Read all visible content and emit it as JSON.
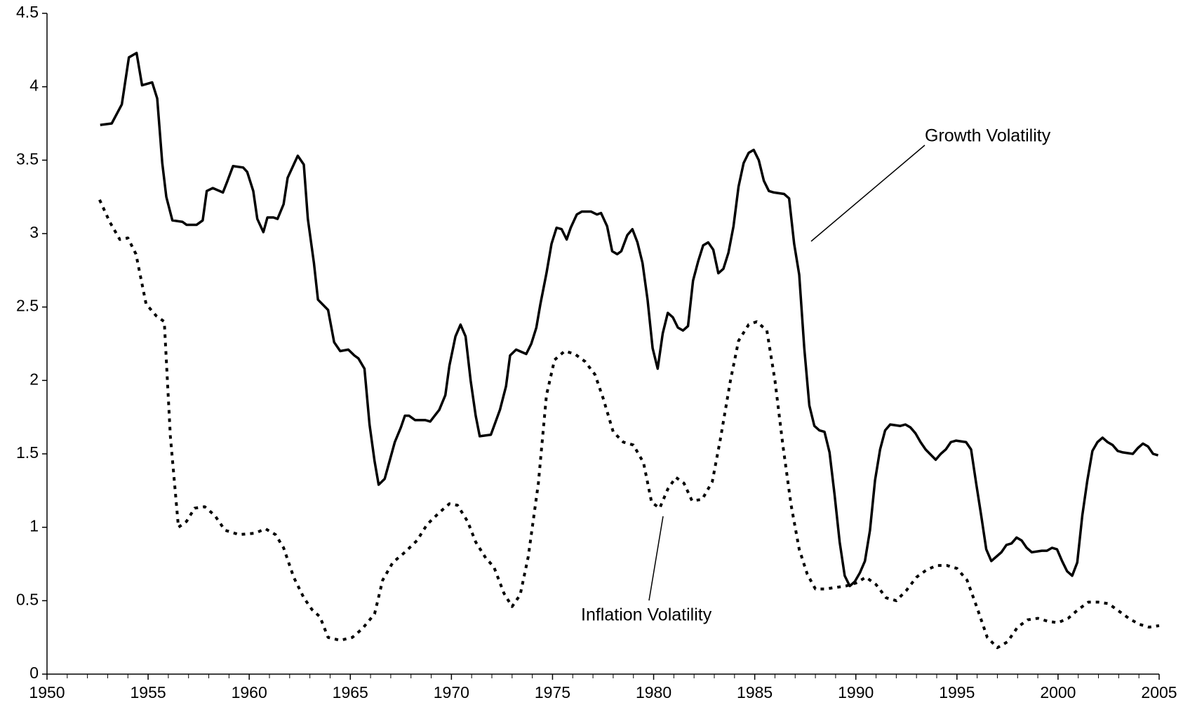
{
  "chart_data": {
    "type": "line",
    "xlim": [
      1950,
      2005
    ],
    "xticks": [
      1950,
      1955,
      1960,
      1965,
      1970,
      1975,
      1980,
      1985,
      1990,
      1995,
      2000,
      2005
    ],
    "ylim": [
      0,
      4.5
    ],
    "yticks": [
      0,
      0.5,
      1,
      1.5,
      2,
      2.5,
      3,
      3.5,
      4,
      4.5
    ],
    "series": [
      {
        "name": "Growth Volatility",
        "color": "#000000",
        "dash": "solid",
        "x": [
          1952.63,
          1953.2,
          1953.7,
          1954.05,
          1954.43,
          1954.7,
          1955.2,
          1955.45,
          1955.7,
          1955.9,
          1956.2,
          1956.7,
          1956.9,
          1957.4,
          1957.7,
          1957.9,
          1958.2,
          1958.7,
          1958.9,
          1959.2,
          1959.7,
          1959.9,
          1960.2,
          1960.4,
          1960.7,
          1960.9,
          1961.2,
          1961.4,
          1961.7,
          1961.9,
          1962.2,
          1962.4,
          1962.7,
          1962.9,
          1963.2,
          1963.4,
          1963.9,
          1964.2,
          1964.5,
          1964.9,
          1965.2,
          1965.4,
          1965.7,
          1965.95,
          1966.2,
          1966.4,
          1966.7,
          1966.9,
          1967.2,
          1967.5,
          1967.7,
          1967.9,
          1968.2,
          1968.7,
          1968.95,
          1969.4,
          1969.7,
          1969.9,
          1970.2,
          1970.45,
          1970.7,
          1970.95,
          1971.2,
          1971.4,
          1971.95,
          1972.4,
          1972.7,
          1972.9,
          1973.2,
          1973.7,
          1973.95,
          1974.2,
          1974.4,
          1974.7,
          1974.95,
          1975.2,
          1975.45,
          1975.7,
          1975.9,
          1976.2,
          1976.45,
          1976.9,
          1977.2,
          1977.4,
          1977.7,
          1977.95,
          1978.2,
          1978.4,
          1978.7,
          1978.95,
          1979.2,
          1979.45,
          1979.7,
          1979.95,
          1980.2,
          1980.45,
          1980.7,
          1980.95,
          1981.2,
          1981.45,
          1981.7,
          1981.95,
          1982.2,
          1982.45,
          1982.7,
          1982.95,
          1983.2,
          1983.45,
          1983.7,
          1983.95,
          1984.2,
          1984.45,
          1984.7,
          1984.95,
          1985.2,
          1985.45,
          1985.7,
          1985.95,
          1986.45,
          1986.7,
          1986.95,
          1987.2,
          1987.45,
          1987.7,
          1987.95,
          1988.2,
          1988.45,
          1988.7,
          1988.95,
          1989.2,
          1989.45,
          1989.7,
          1989.95,
          1990.2,
          1990.45,
          1990.7,
          1990.95,
          1991.2,
          1991.45,
          1991.7,
          1992.2,
          1992.45,
          1992.7,
          1992.95,
          1993.2,
          1993.45,
          1993.95,
          1994.2,
          1994.45,
          1994.7,
          1994.95,
          1995.45,
          1995.7,
          1995.95,
          1996.2,
          1996.45,
          1996.7,
          1997.2,
          1997.45,
          1997.7,
          1997.95,
          1998.2,
          1998.45,
          1998.7,
          1999.2,
          1999.45,
          1999.7,
          1999.95,
          2000.2,
          2000.45,
          2000.7,
          2000.95,
          2001.2,
          2001.45,
          2001.7,
          2001.95,
          2002.2,
          2002.45,
          2002.7,
          2002.95,
          2003.2,
          2003.7,
          2003.95,
          2004.2,
          2004.45,
          2004.7,
          2004.95
        ],
        "values": [
          3.74,
          3.75,
          3.88,
          4.2,
          4.23,
          4.01,
          4.03,
          3.92,
          3.48,
          3.25,
          3.09,
          3.08,
          3.06,
          3.06,
          3.09,
          3.29,
          3.31,
          3.28,
          3.35,
          3.46,
          3.45,
          3.42,
          3.29,
          3.1,
          3.01,
          3.11,
          3.11,
          3.1,
          3.2,
          3.38,
          3.47,
          3.53,
          3.47,
          3.1,
          2.8,
          2.55,
          2.48,
          2.26,
          2.2,
          2.21,
          2.17,
          2.15,
          2.08,
          1.7,
          1.45,
          1.29,
          1.33,
          1.43,
          1.58,
          1.68,
          1.76,
          1.76,
          1.73,
          1.73,
          1.72,
          1.8,
          1.9,
          2.1,
          2.3,
          2.38,
          2.3,
          2.0,
          1.76,
          1.62,
          1.63,
          1.8,
          1.96,
          2.17,
          2.21,
          2.18,
          2.25,
          2.36,
          2.52,
          2.73,
          2.93,
          3.04,
          3.03,
          2.96,
          3.04,
          3.13,
          3.15,
          3.15,
          3.13,
          3.14,
          3.05,
          2.88,
          2.86,
          2.88,
          2.99,
          3.03,
          2.94,
          2.8,
          2.55,
          2.22,
          2.08,
          2.32,
          2.46,
          2.43,
          2.36,
          2.34,
          2.37,
          2.68,
          2.81,
          2.92,
          2.94,
          2.89,
          2.73,
          2.76,
          2.87,
          3.05,
          3.32,
          3.48,
          3.55,
          3.57,
          3.5,
          3.36,
          3.29,
          3.28,
          3.27,
          3.24,
          2.93,
          2.72,
          2.22,
          1.83,
          1.69,
          1.66,
          1.65,
          1.51,
          1.22,
          0.9,
          0.67,
          0.6,
          0.63,
          0.69,
          0.77,
          0.98,
          1.32,
          1.53,
          1.66,
          1.7,
          1.69,
          1.7,
          1.68,
          1.64,
          1.58,
          1.53,
          1.46,
          1.5,
          1.53,
          1.58,
          1.59,
          1.58,
          1.53,
          1.3,
          1.08,
          0.85,
          0.77,
          0.83,
          0.88,
          0.89,
          0.93,
          0.91,
          0.86,
          0.83,
          0.84,
          0.84,
          0.86,
          0.85,
          0.77,
          0.7,
          0.67,
          0.76,
          1.08,
          1.32,
          1.52,
          1.58,
          1.61,
          1.58,
          1.56,
          1.52,
          1.51,
          1.5,
          1.54,
          1.57,
          1.55,
          1.5,
          1.49
        ]
      },
      {
        "name": "Inflation Volatility",
        "color": "#000000",
        "dash": "dotted",
        "x": [
          1952.6,
          1953.1,
          1953.6,
          1954.0,
          1954.4,
          1954.9,
          1955.4,
          1955.8,
          1956.1,
          1956.5,
          1956.9,
          1957.3,
          1957.8,
          1958.3,
          1958.8,
          1959.5,
          1960.3,
          1960.8,
          1961.3,
          1961.7,
          1962.2,
          1962.7,
          1963.1,
          1963.5,
          1963.9,
          1964.5,
          1965.1,
          1965.6,
          1966.2,
          1966.6,
          1967.1,
          1967.7,
          1968.3,
          1968.8,
          1969.4,
          1969.9,
          1970.3,
          1970.8,
          1971.2,
          1971.7,
          1972.1,
          1972.6,
          1973.0,
          1973.4,
          1973.8,
          1974.3,
          1974.7,
          1975.1,
          1975.6,
          1976.1,
          1976.6,
          1977.1,
          1977.5,
          1978.0,
          1978.5,
          1979.0,
          1979.5,
          1979.9,
          1980.3,
          1980.7,
          1981.1,
          1981.5,
          1981.9,
          1982.4,
          1982.9,
          1983.3,
          1983.8,
          1984.2,
          1984.7,
          1985.1,
          1985.6,
          1986.0,
          1986.4,
          1986.8,
          1987.2,
          1987.6,
          1988.0,
          1988.5,
          1989.0,
          1989.5,
          1990.0,
          1990.5,
          1991.0,
          1991.5,
          1992.0,
          1992.5,
          1993.0,
          1993.5,
          1994.0,
          1994.5,
          1995.0,
          1995.5,
          1996.0,
          1996.5,
          1997.0,
          1997.5,
          1998.0,
          1998.5,
          1999.0,
          1999.5,
          2000.0,
          2000.5,
          2001.0,
          2001.5,
          2002.0,
          2002.5,
          2003.0,
          2003.5,
          2004.0,
          2004.5,
          2005.0
        ],
        "values": [
          3.23,
          3.08,
          2.96,
          2.97,
          2.86,
          2.52,
          2.44,
          2.4,
          1.62,
          1.0,
          1.04,
          1.13,
          1.14,
          1.08,
          0.98,
          0.95,
          0.96,
          0.99,
          0.95,
          0.86,
          0.66,
          0.52,
          0.44,
          0.39,
          0.25,
          0.23,
          0.25,
          0.31,
          0.41,
          0.64,
          0.76,
          0.83,
          0.91,
          1.02,
          1.1,
          1.16,
          1.15,
          1.04,
          0.9,
          0.79,
          0.73,
          0.55,
          0.46,
          0.54,
          0.8,
          1.3,
          1.9,
          2.14,
          2.2,
          2.18,
          2.13,
          2.04,
          1.88,
          1.65,
          1.58,
          1.56,
          1.44,
          1.17,
          1.13,
          1.26,
          1.34,
          1.3,
          1.18,
          1.19,
          1.31,
          1.6,
          2.0,
          2.27,
          2.38,
          2.4,
          2.34,
          2.0,
          1.55,
          1.15,
          0.85,
          0.68,
          0.58,
          0.58,
          0.59,
          0.6,
          0.62,
          0.66,
          0.61,
          0.52,
          0.5,
          0.57,
          0.66,
          0.71,
          0.74,
          0.74,
          0.72,
          0.64,
          0.45,
          0.25,
          0.18,
          0.22,
          0.32,
          0.37,
          0.38,
          0.36,
          0.35,
          0.38,
          0.44,
          0.49,
          0.49,
          0.48,
          0.43,
          0.38,
          0.34,
          0.32,
          0.33
        ]
      }
    ],
    "annotations": [
      {
        "text": "Growth Volatility"
      },
      {
        "text": "Inflation Volatility"
      }
    ]
  }
}
